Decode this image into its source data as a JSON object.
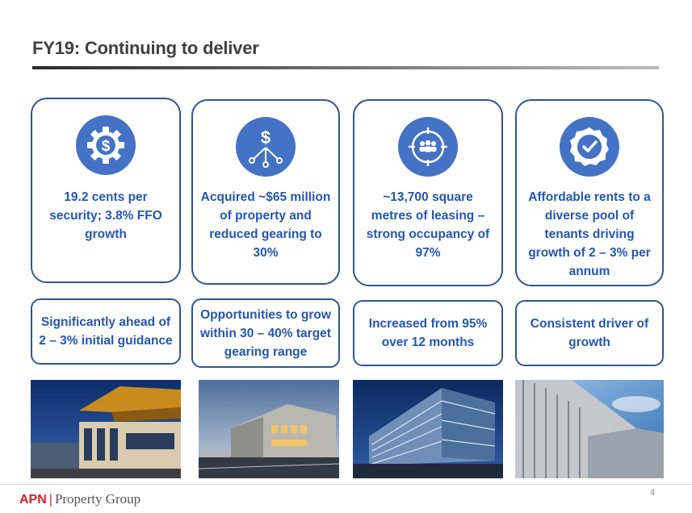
{
  "header": {
    "title": "FY19: Continuing to deliver"
  },
  "cards": [
    {
      "icon": "dollar-gear-icon",
      "text": "19.2 cents per security; 3.8% FFO growth",
      "detail": "Significantly ahead of 2 – 3% initial guidance"
    },
    {
      "icon": "dollar-network-icon",
      "text": "Acquired ~$65 million of property and reduced gearing to 30%",
      "detail": "Opportunities to grow within 30 – 40% target gearing range"
    },
    {
      "icon": "target-people-icon",
      "text": "~13,700 square metres of leasing – strong occupancy of 97%",
      "detail": "Increased from 95% over 12 months"
    },
    {
      "icon": "check-badge-icon",
      "text": "Affordable rents to a diverse pool of tenants driving growth of 2 – 3% per annum",
      "detail": "Consistent driver of growth"
    }
  ],
  "photos": [
    {
      "name": "building-photo-1"
    },
    {
      "name": "building-photo-2"
    },
    {
      "name": "building-photo-3"
    },
    {
      "name": "building-photo-4"
    }
  ],
  "footer": {
    "logo_brand": "APN",
    "logo_separator": "|",
    "logo_text": "Property Group",
    "page_number": "4"
  },
  "colors": {
    "accent_blue": "#2f5597",
    "icon_blue": "#4472c4",
    "text_blue": "#2456b0",
    "brand_red": "#d6232a"
  }
}
